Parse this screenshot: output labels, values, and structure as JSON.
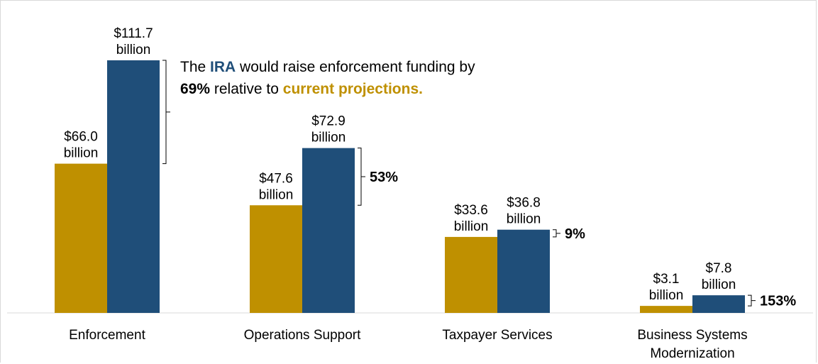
{
  "chart_data": {
    "type": "bar",
    "categories": [
      "Enforcement",
      "Operations Support",
      "Taxpayer Services",
      "Business Systems Modernization"
    ],
    "series": [
      {
        "values": [
          66.0,
          47.6,
          33.6,
          3.1
        ],
        "color": "#BF9000"
      },
      {
        "values": [
          111.7,
          72.9,
          36.8,
          7.8
        ],
        "color": "#1F4E79"
      }
    ],
    "value_labels": [
      [
        "$66.0",
        "$47.6",
        "$33.6",
        "$3.1"
      ],
      [
        "$111.7",
        "$72.9",
        "$36.8",
        "$7.8"
      ]
    ],
    "value_unit": "billion",
    "category_label_lines": [
      [
        "Enforcement"
      ],
      [
        "Operations Support"
      ],
      [
        "Taxpayer Services"
      ],
      [
        "Business Systems",
        "Modernization"
      ]
    ],
    "percent_increase": [
      "69%",
      "53%",
      "9%",
      "153%"
    ],
    "annotation": {
      "prefix": "The",
      "ira": "IRA",
      "rest_line1": "would  raise enforcement funding by",
      "percent": "69%",
      "middle": "relative to",
      "highlight": "current projections."
    },
    "axis": {
      "ylim": [
        0,
        111.7
      ]
    },
    "grid": false,
    "legend": "none"
  }
}
